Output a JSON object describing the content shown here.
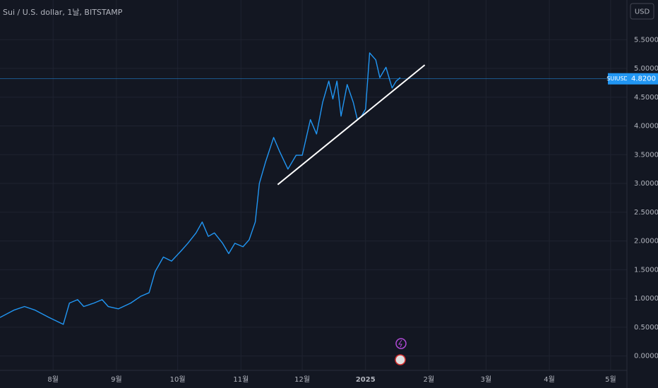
{
  "chart_data": {
    "type": "line",
    "title": "Sui / U.S. dollar, 1날, BITSTAMP",
    "currency": "USD",
    "x": [
      -26,
      -19,
      -14,
      -9,
      -2,
      5,
      8,
      12,
      15,
      20,
      24,
      27,
      32,
      38,
      43,
      47,
      50,
      54,
      58,
      63,
      66,
      70,
      73,
      76,
      79,
      83,
      86,
      89,
      93,
      96,
      99,
      101,
      104,
      108,
      111,
      115,
      119,
      122,
      126,
      129,
      132,
      135,
      137,
      139,
      141,
      144,
      147,
      149,
      151,
      153,
      155,
      158,
      160,
      163,
      166,
      168,
      170
    ],
    "series": [
      {
        "name": "SUIUSD",
        "color": "#2196f3",
        "values": [
          0.67,
          0.8,
          0.86,
          0.8,
          0.67,
          0.55,
          0.92,
          0.98,
          0.86,
          0.92,
          0.98,
          0.86,
          0.82,
          0.92,
          1.04,
          1.1,
          1.47,
          1.72,
          1.65,
          1.84,
          1.96,
          2.14,
          2.33,
          2.08,
          2.14,
          1.96,
          1.78,
          1.96,
          1.9,
          2.02,
          2.33,
          3.0,
          3.37,
          3.8,
          3.55,
          3.25,
          3.49,
          3.49,
          4.11,
          3.86,
          4.41,
          4.78,
          4.47,
          4.78,
          4.17,
          4.72,
          4.41,
          4.11,
          4.17,
          4.29,
          5.27,
          5.15,
          4.84,
          5.02,
          4.66,
          4.78,
          4.84
        ]
      }
    ],
    "last_price": {
      "value": 4.82,
      "label": "4.8200"
    },
    "trendline": {
      "x": [
        110,
        182
      ],
      "values": [
        2.98,
        5.06
      ],
      "color": "#ffffff"
    },
    "xlim": [
      -26,
      281
    ],
    "xticks": [
      {
        "value": 0,
        "label": "8월"
      },
      {
        "value": 31,
        "label": "9월"
      },
      {
        "value": 61,
        "label": "10월"
      },
      {
        "value": 92,
        "label": "11월"
      },
      {
        "value": 122,
        "label": "12월"
      },
      {
        "value": 153,
        "label": "2025"
      },
      {
        "value": 184,
        "label": "2월"
      },
      {
        "value": 212,
        "label": "3월"
      },
      {
        "value": 243,
        "label": "4월"
      },
      {
        "value": 273,
        "label": "5월"
      }
    ],
    "ylim": [
      -0.25,
      6.19
    ],
    "yticks": [
      {
        "value": 0,
        "label": "0.0000"
      },
      {
        "value": 0.5,
        "label": "0.5000"
      },
      {
        "value": 1,
        "label": "1.0000"
      },
      {
        "value": 1.5,
        "label": "1.5000"
      },
      {
        "value": 2,
        "label": "2.0000"
      },
      {
        "value": 2.5,
        "label": "2.5000"
      },
      {
        "value": 3,
        "label": "3.0000"
      },
      {
        "value": 3.5,
        "label": "3.5000"
      },
      {
        "value": 4,
        "label": "4.0000"
      },
      {
        "value": 4.5,
        "label": "4.5000"
      },
      {
        "value": 5,
        "label": "5.0000"
      },
      {
        "value": 5.5,
        "label": "5.5000"
      }
    ],
    "grid": true
  }
}
